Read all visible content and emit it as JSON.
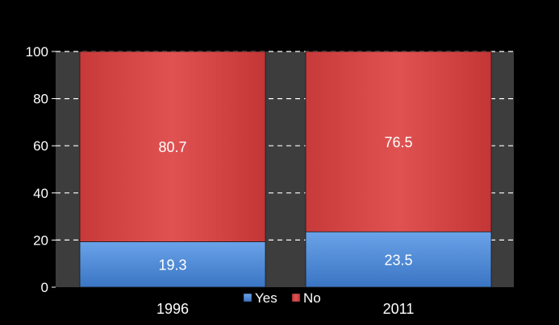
{
  "chart_data": {
    "type": "bar",
    "stacked": true,
    "categories": [
      "1996",
      "2011"
    ],
    "series": [
      {
        "name": "Yes",
        "values": [
          19.3,
          23.5
        ],
        "color": "#4a86d6",
        "value_labels": [
          "19.3",
          "23.5"
        ]
      },
      {
        "name": "No",
        "values": [
          80.7,
          76.5
        ],
        "color": "#d94a4a",
        "value_labels": [
          "80.7",
          "76.5"
        ]
      }
    ],
    "yticks": [
      "0",
      "20",
      "40",
      "60",
      "80",
      "100"
    ],
    "ylim": [
      0,
      100
    ],
    "grid": true,
    "legend_position": "bottom",
    "colors": {
      "background": "#000000",
      "plot_area": "#3d3d3d",
      "text": "#ffffff",
      "gridline": "#ffffff"
    }
  }
}
